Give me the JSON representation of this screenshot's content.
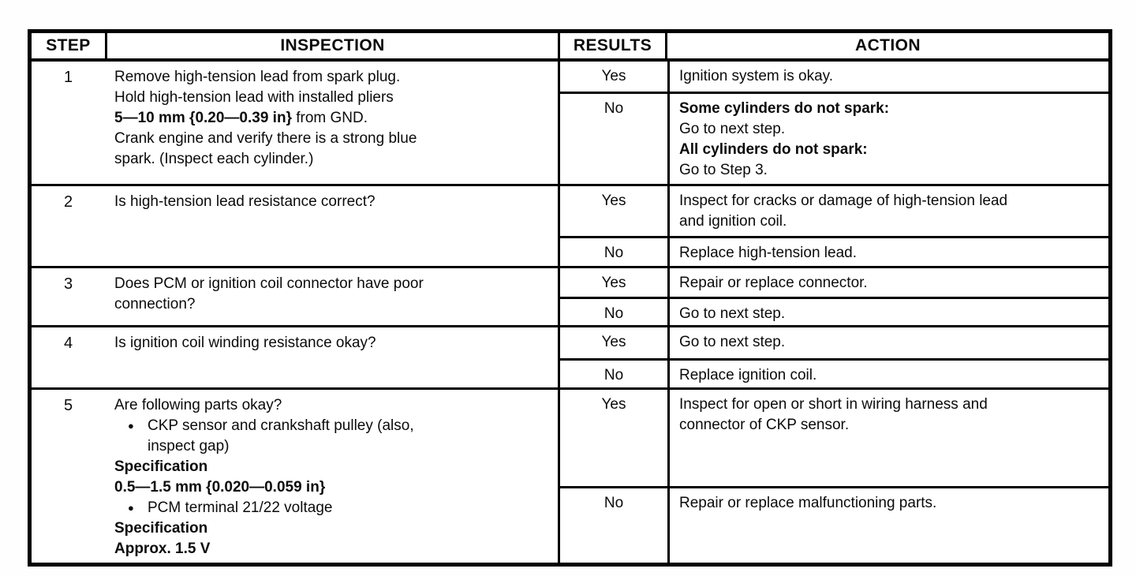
{
  "doc": {
    "headers": {
      "step": "STEP",
      "inspection": "INSPECTION",
      "results": "RESULTS",
      "action": "ACTION"
    },
    "rows": [
      {
        "step": "1",
        "inspection": [
          {
            "t": "Remove high-tension lead from spark plug."
          },
          {
            "t": "Hold high-tension lead with installed pliers"
          },
          {
            "seg": [
              {
                "t": "5—10 mm {0.20—0.39 in}",
                "b": true
              },
              {
                "t": " from GND."
              }
            ]
          },
          {
            "t": "Crank engine and verify there is a strong blue"
          },
          {
            "t": "spark. (Inspect each cylinder.)"
          }
        ],
        "outcomes": [
          {
            "result": "Yes",
            "action": [
              {
                "t": "Ignition system is okay."
              }
            ]
          },
          {
            "result": "No",
            "action": [
              {
                "t": "Some cylinders do not spark:",
                "b": true
              },
              {
                "t": "Go to next step."
              },
              {
                "t": "All cylinders do not spark:",
                "b": true
              },
              {
                "t": "Go to Step 3."
              }
            ]
          }
        ]
      },
      {
        "step": "2",
        "inspection": [
          {
            "t": "Is high-tension lead resistance correct?"
          }
        ],
        "outcomes": [
          {
            "result": "Yes",
            "action": [
              {
                "t": "Inspect for cracks or damage of high-tension lead"
              },
              {
                "t": "and ignition coil."
              }
            ]
          },
          {
            "result": "No",
            "action": [
              {
                "t": "Replace high-tension lead."
              }
            ]
          }
        ]
      },
      {
        "step": "3",
        "inspection": [
          {
            "t": "Does PCM or ignition coil connector have poor"
          },
          {
            "t": "connection?"
          }
        ],
        "outcomes": [
          {
            "result": "Yes",
            "action": [
              {
                "t": "Repair or replace connector."
              }
            ]
          },
          {
            "result": "No",
            "action": [
              {
                "t": "Go to next step."
              }
            ]
          }
        ]
      },
      {
        "step": "4",
        "inspection": [
          {
            "t": "Is ignition coil winding resistance okay?"
          }
        ],
        "outcomes": [
          {
            "result": "Yes",
            "action": [
              {
                "t": "Go to next step."
              }
            ]
          },
          {
            "result": "No",
            "action": [
              {
                "t": "Replace ignition coil."
              }
            ]
          }
        ]
      },
      {
        "step": "5",
        "inspection": [
          {
            "t": "Are following parts okay?"
          },
          {
            "t": "CKP sensor and crankshaft pulley (also,",
            "cls": "bullet"
          },
          {
            "t": "inspect gap)",
            "cls": "cont"
          },
          {
            "t": "Specification",
            "b": true
          },
          {
            "t": "0.5—1.5 mm {0.020—0.059 in}",
            "b": true
          },
          {
            "t": "PCM terminal 21/22 voltage",
            "cls": "bullet"
          },
          {
            "t": "Specification",
            "b": true
          },
          {
            "t": "Approx. 1.5 V",
            "b": true
          }
        ],
        "outcomes": [
          {
            "result": "Yes",
            "action": [
              {
                "t": "Inspect for open or short in wiring harness and"
              },
              {
                "t": "connector of CKP sensor."
              }
            ]
          },
          {
            "result": "No",
            "action": [
              {
                "t": "Repair or replace malfunctioning parts."
              }
            ]
          }
        ]
      }
    ]
  }
}
